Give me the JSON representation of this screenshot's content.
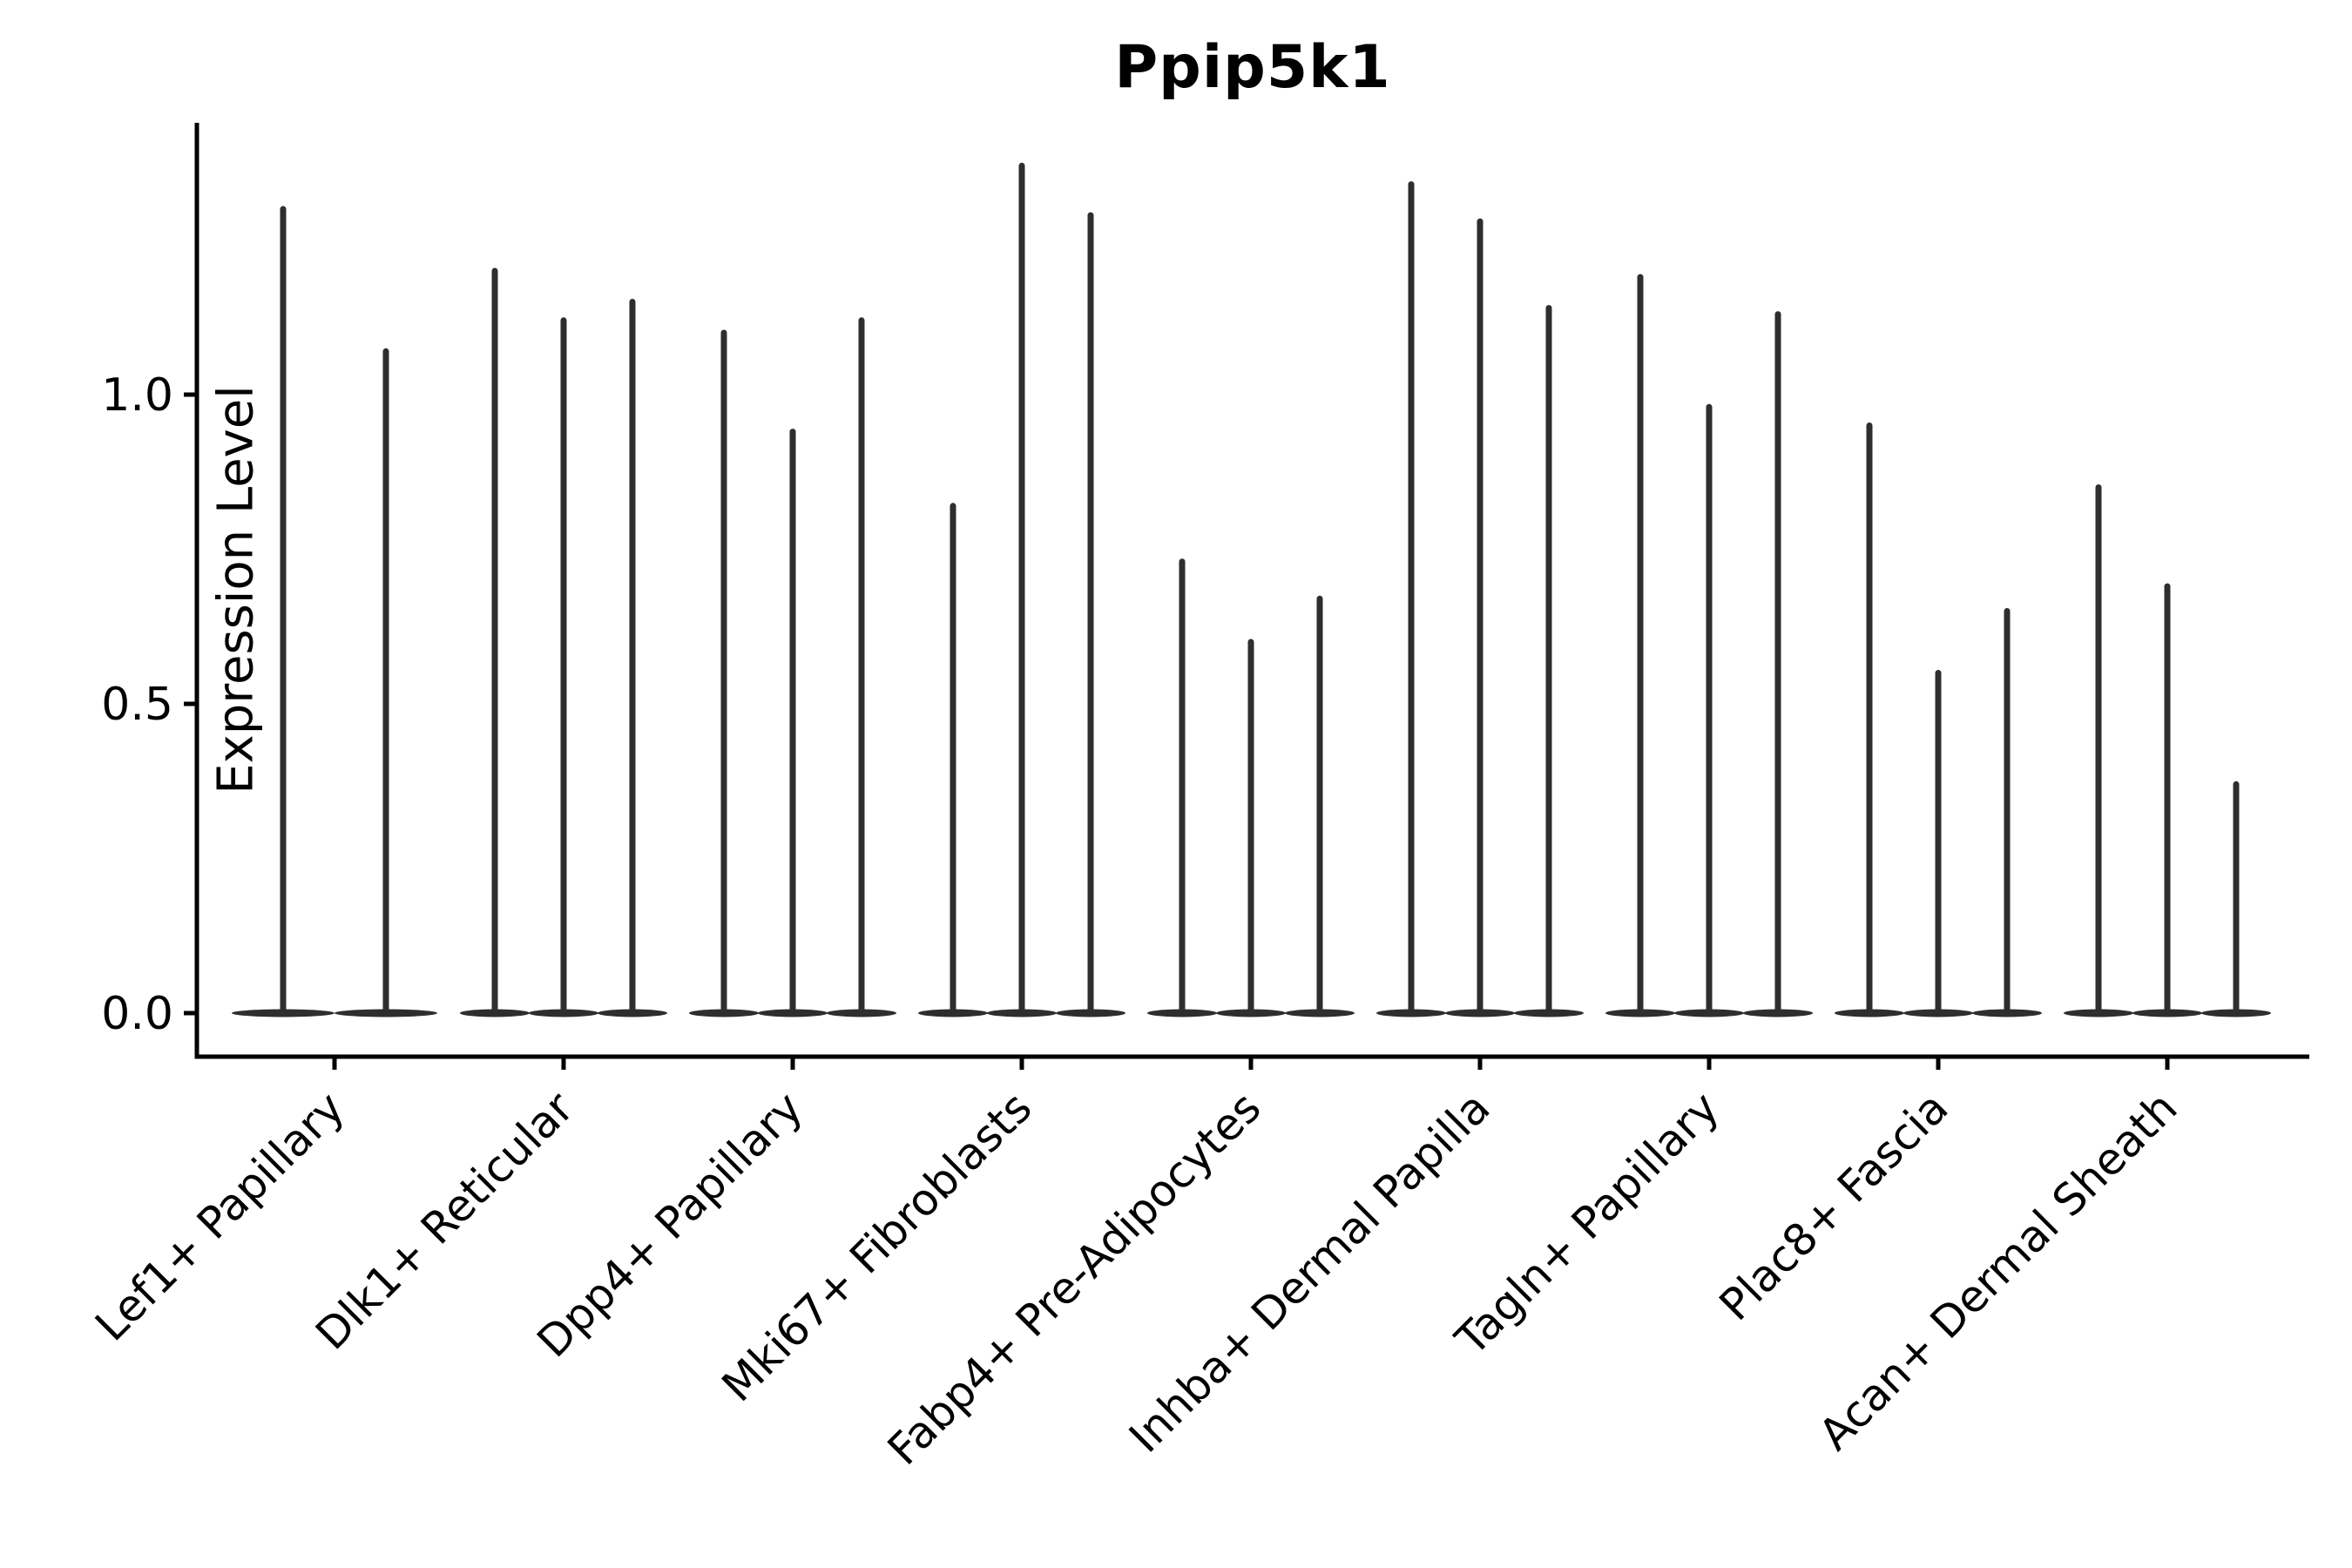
{
  "chart_data": {
    "type": "violin",
    "title": "Ppip5k1",
    "ylabel": "Expression Level",
    "xlabel": "",
    "grid": false,
    "legend": "none",
    "ylim": [
      -0.07,
      1.44
    ],
    "ytick_values": [
      0.0,
      0.5,
      1.0
    ],
    "ytick_labels": [
      "0.0",
      "0.5",
      "1.0"
    ],
    "xtick_label_rotation_deg": 45,
    "categories": [
      "Lef1+ Papillary",
      "Dlk1+ Reticular",
      "Dpp4+ Papillary",
      "Mki67+ Fibroblasts",
      "Fabp4+ Pre-Adipocytes",
      "Inhba+ Dermal Papilla",
      "Tagln+ Papillary",
      "Plac8+ Fascia",
      "Acan+ Dermal Sheath"
    ],
    "series": [
      {
        "category": "Lef1+ Papillary",
        "violin_max_expression": [
          1.3,
          1.07
        ]
      },
      {
        "category": "Dlk1+ Reticular",
        "violin_max_expression": [
          1.2,
          1.12,
          1.15
        ]
      },
      {
        "category": "Dpp4+ Papillary",
        "violin_max_expression": [
          1.1,
          0.94,
          1.12
        ]
      },
      {
        "category": "Mki67+ Fibroblasts",
        "violin_max_expression": [
          0.82,
          1.37,
          1.29
        ]
      },
      {
        "category": "Fabp4+ Pre-Adipocytes",
        "violin_max_expression": [
          0.73,
          0.6,
          0.67
        ]
      },
      {
        "category": "Inhba+ Dermal Papilla",
        "violin_max_expression": [
          1.34,
          1.28,
          1.14
        ]
      },
      {
        "category": "Tagln+ Papillary",
        "violin_max_expression": [
          1.19,
          0.98,
          1.13
        ]
      },
      {
        "category": "Plac8+ Fascia",
        "violin_max_expression": [
          0.95,
          0.55,
          0.65
        ]
      },
      {
        "category": "Acan+ Dermal Sheath",
        "violin_max_expression": [
          0.85,
          0.69,
          0.37
        ]
      }
    ],
    "violins_all_start_at": 0.0,
    "colors": {
      "violin_line": "#2e2e2e",
      "violin_base": "#2e2e2e",
      "axis": "#000000",
      "text": "#000000",
      "background": "#ffffff"
    }
  }
}
